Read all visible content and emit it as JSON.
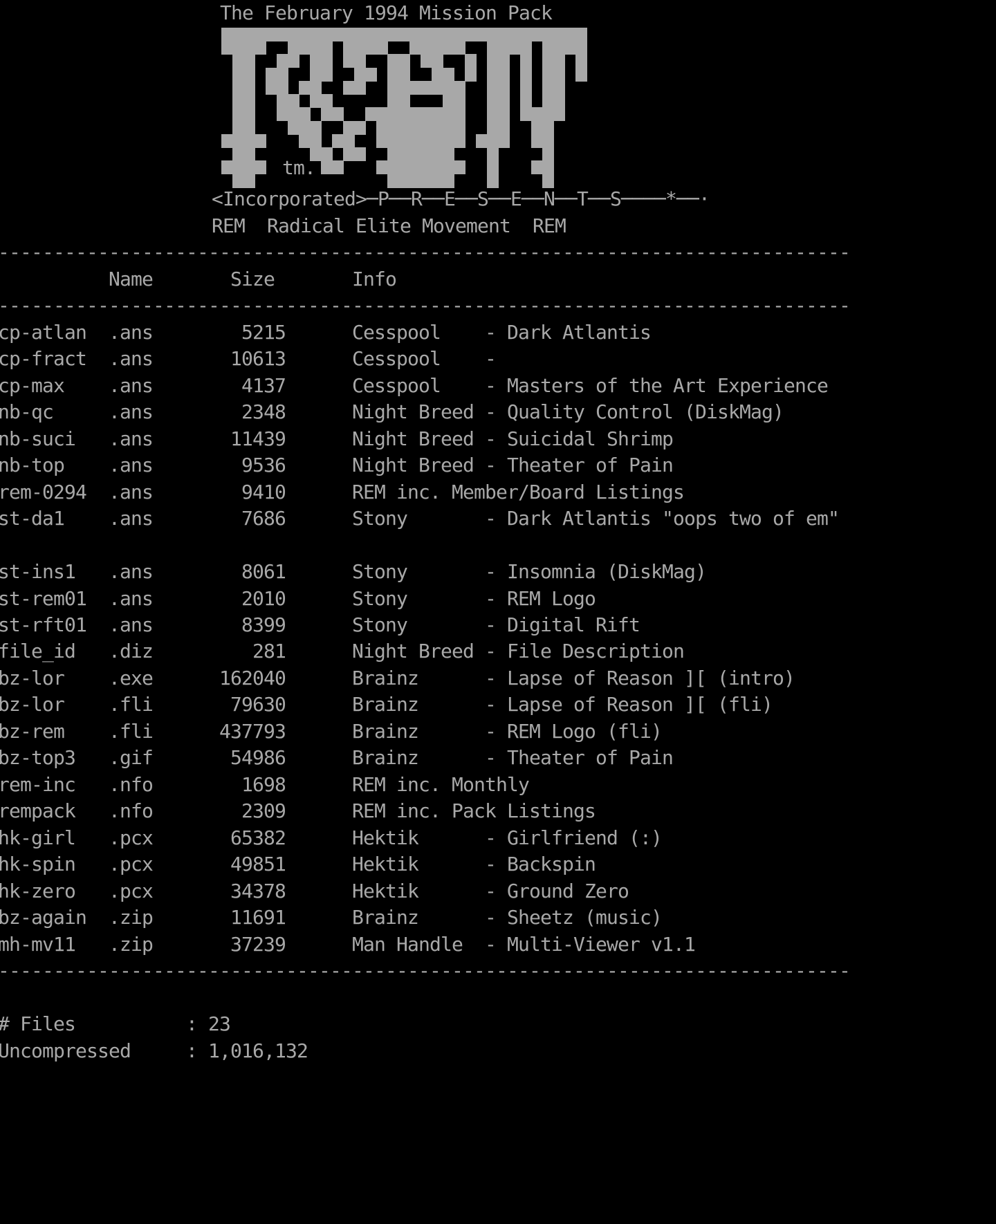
{
  "colors": {
    "background": "#000000",
    "text": "#A8A8A8"
  },
  "header": {
    "title": "The February 1994 Mission Pack",
    "trademark": "tm.",
    "presents_line": "<Incorporated>─P──R──E──S──E──N──T──S────*──·",
    "group_line": "REM  Radical Elite Movement  REM"
  },
  "logo": {
    "description": "REM wildstyle ANSI block-art logo",
    "color": "#A8A8A8",
    "grid": [
      "#################################",
      "####..####.####..#####..####.####",
      ".##..##.##.##..##.##..#.##.#.##.#",
      ".##.##..##..##.##..##.#.##.#.##.#",
      ".##.##.##..##..#######..##.#.##..",
      ".##..##.##.....##...##..##.#.##..",
      ".##..###.##..#########..##.####..",
      ".##...###..##.########..##..##...",
      "####...##.##..########.###..##...",
      ".##.....##.##..######...#....#...",
      "####.....##...########..#...##...",
      ".##............######...#....#..."
    ]
  },
  "table": {
    "divider": "-----------------------------------------------------------------------------",
    "headers": [
      "Name",
      "Size",
      "Info"
    ],
    "rows": [
      {
        "name": "cp-atlan",
        "ext": ".ans",
        "size": "5215",
        "group": "Cesspool",
        "desc": "Dark Atlantis"
      },
      {
        "name": "cp-fract",
        "ext": ".ans",
        "size": "10613",
        "group": "Cesspool",
        "desc": ""
      },
      {
        "name": "cp-max",
        "ext": ".ans",
        "size": "4137",
        "group": "Cesspool",
        "desc": "Masters of the Art Experience"
      },
      {
        "name": "nb-qc",
        "ext": ".ans",
        "size": "2348",
        "group": "Night Breed",
        "desc": "Quality Control (DiskMag)"
      },
      {
        "name": "nb-suci",
        "ext": ".ans",
        "size": "11439",
        "group": "Night Breed",
        "desc": "Suicidal Shrimp"
      },
      {
        "name": "nb-top",
        "ext": ".ans",
        "size": "9536",
        "group": "Night Breed",
        "desc": "Theater of Pain"
      },
      {
        "name": "rem-0294",
        "ext": ".ans",
        "size": "9410",
        "group": "REM inc. Member/Board Listings",
        "desc": null
      },
      {
        "name": "st-da1",
        "ext": ".ans",
        "size": "7686",
        "group": "Stony",
        "desc": "Dark Atlantis \"oops two of em\""
      },
      {
        "name": "",
        "ext": "",
        "size": "",
        "group": "",
        "desc": null
      },
      {
        "name": "st-ins1",
        "ext": ".ans",
        "size": "8061",
        "group": "Stony",
        "desc": "Insomnia (DiskMag)"
      },
      {
        "name": "st-rem01",
        "ext": ".ans",
        "size": "2010",
        "group": "Stony",
        "desc": "REM Logo"
      },
      {
        "name": "st-rft01",
        "ext": ".ans",
        "size": "8399",
        "group": "Stony",
        "desc": "Digital Rift"
      },
      {
        "name": "file_id",
        "ext": ".diz",
        "size": "281",
        "group": "Night Breed",
        "desc": "File Description"
      },
      {
        "name": "bz-lor",
        "ext": ".exe",
        "size": "162040",
        "group": "Brainz",
        "desc": "Lapse of Reason ][ (intro)"
      },
      {
        "name": "bz-lor",
        "ext": ".fli",
        "size": "79630",
        "group": "Brainz",
        "desc": "Lapse of Reason ][ (fli)"
      },
      {
        "name": "bz-rem",
        "ext": ".fli",
        "size": "437793",
        "group": "Brainz",
        "desc": "REM Logo (fli)"
      },
      {
        "name": "bz-top3",
        "ext": ".gif",
        "size": "54986",
        "group": "Brainz",
        "desc": "Theater of Pain"
      },
      {
        "name": "rem-inc",
        "ext": ".nfo",
        "size": "1698",
        "group": "REM inc. Monthly",
        "desc": null
      },
      {
        "name": "rempack",
        "ext": ".nfo",
        "size": "2309",
        "group": "REM inc. Pack Listings",
        "desc": null
      },
      {
        "name": "hk-girl",
        "ext": ".pcx",
        "size": "65382",
        "group": "Hektik",
        "desc": "Girlfriend (:)"
      },
      {
        "name": "hk-spin",
        "ext": ".pcx",
        "size": "49851",
        "group": "Hektik",
        "desc": "Backspin"
      },
      {
        "name": "hk-zero",
        "ext": ".pcx",
        "size": "34378",
        "group": "Hektik",
        "desc": "Ground Zero"
      },
      {
        "name": "bz-again",
        "ext": ".zip",
        "size": "11691",
        "group": "Brainz",
        "desc": "Sheetz (music)"
      },
      {
        "name": "mh-mv11",
        "ext": ".zip",
        "size": "37239",
        "group": "Man Handle",
        "desc": "Multi-Viewer v1.1"
      }
    ]
  },
  "footer": {
    "files_label": "# Files",
    "files_count": "23",
    "uncompressed_label": "Uncompressed",
    "uncompressed_total": "1,016,132"
  }
}
